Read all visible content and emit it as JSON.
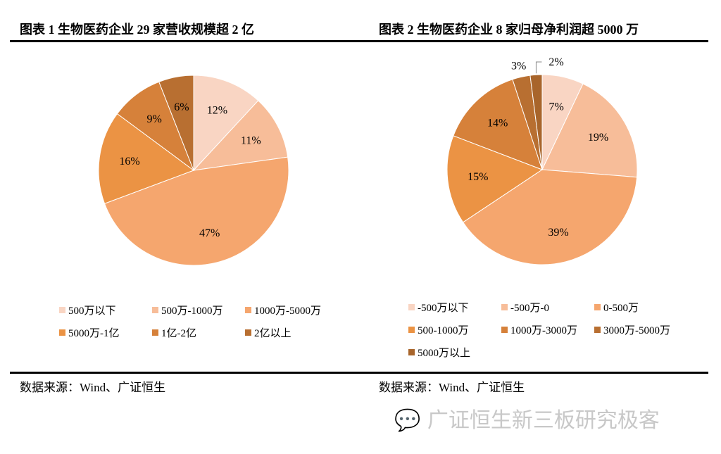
{
  "chart_data": [
    {
      "type": "pie",
      "title": "图表 1 生物医药企业 29 家营收规模超 2 亿",
      "categories": [
        "500万以下",
        "500万-1000万",
        "1000万-5000万",
        "5000万-1亿",
        "1亿-2亿",
        "2亿以上"
      ],
      "values": [
        12,
        11,
        47,
        16,
        9,
        6
      ],
      "labels": [
        "12%",
        "11%",
        "47%",
        "16%",
        "9%",
        "6%"
      ],
      "colors": [
        "#F9D5C3",
        "#F7BD99",
        "#F5A66E",
        "#EB9344",
        "#D6813A",
        "#B86F31"
      ],
      "legend": "bottom",
      "source": "数据来源：Wind、广证恒生"
    },
    {
      "type": "pie",
      "title": "图表 2 生物医药企业 8 家归母净利润超 5000 万",
      "categories": [
        "-500万以下",
        "-500万-0",
        "0-500万",
        "500-1000万",
        "1000万-3000万",
        "3000万-5000万",
        "5000万以上"
      ],
      "values": [
        7,
        19,
        39,
        15,
        14,
        3,
        2
      ],
      "labels": [
        "7%",
        "19%",
        "39%",
        "15%",
        "14%",
        "3%",
        "2%"
      ],
      "colors": [
        "#F9D5C3",
        "#F7BD99",
        "#F5A66E",
        "#EB9344",
        "#D6813A",
        "#B86F31",
        "#A8652B"
      ],
      "legend": "bottom",
      "source": "数据来源：Wind、广证恒生"
    }
  ],
  "watermark": "广证恒生新三板研究极客"
}
